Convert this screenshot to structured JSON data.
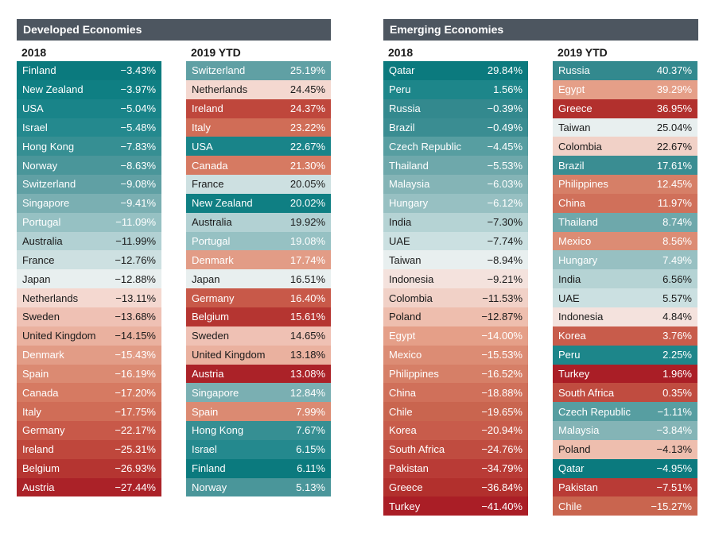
{
  "chart_data": [
    {
      "type": "table",
      "title": "Developed Economies",
      "tables": [
        {
          "label": "2018",
          "rows": [
            {
              "name": "Finland",
              "value": "−3.43%",
              "num": -3.43
            },
            {
              "name": "New Zealand",
              "value": "−3.97%",
              "num": -3.97
            },
            {
              "name": "USA",
              "value": "−5.04%",
              "num": -5.04
            },
            {
              "name": "Israel",
              "value": "−5.48%",
              "num": -5.48
            },
            {
              "name": "Hong Kong",
              "value": "−7.83%",
              "num": -7.83
            },
            {
              "name": "Norway",
              "value": "−8.63%",
              "num": -8.63
            },
            {
              "name": "Switzerland",
              "value": "−9.08%",
              "num": -9.08
            },
            {
              "name": "Singapore",
              "value": "−9.41%",
              "num": -9.41
            },
            {
              "name": "Portugal",
              "value": "−11.09%",
              "num": -11.09
            },
            {
              "name": "Australia",
              "value": "−11.99%",
              "num": -11.99
            },
            {
              "name": "France",
              "value": "−12.76%",
              "num": -12.76
            },
            {
              "name": "Japan",
              "value": "−12.88%",
              "num": -12.88
            },
            {
              "name": "Netherlands",
              "value": "−13.11%",
              "num": -13.11
            },
            {
              "name": "Sweden",
              "value": "−13.68%",
              "num": -13.68
            },
            {
              "name": "United Kingdom",
              "value": "−14.15%",
              "num": -14.15
            },
            {
              "name": "Denmark",
              "value": "−15.43%",
              "num": -15.43
            },
            {
              "name": "Spain",
              "value": "−16.19%",
              "num": -16.19
            },
            {
              "name": "Canada",
              "value": "−17.20%",
              "num": -17.2
            },
            {
              "name": "Italy",
              "value": "−17.75%",
              "num": -17.75
            },
            {
              "name": "Germany",
              "value": "−22.17%",
              "num": -22.17
            },
            {
              "name": "Ireland",
              "value": "−25.31%",
              "num": -25.31
            },
            {
              "name": "Belgium",
              "value": "−26.93%",
              "num": -26.93
            },
            {
              "name": "Austria",
              "value": "−27.44%",
              "num": -27.44
            }
          ]
        },
        {
          "label": "2019 YTD",
          "rows": [
            {
              "name": "Switzerland",
              "value": "25.19%",
              "num": 25.19
            },
            {
              "name": "Netherlands",
              "value": "24.45%",
              "num": 24.45
            },
            {
              "name": "Ireland",
              "value": "24.37%",
              "num": 24.37
            },
            {
              "name": "Italy",
              "value": "23.22%",
              "num": 23.22
            },
            {
              "name": "USA",
              "value": "22.67%",
              "num": 22.67
            },
            {
              "name": "Canada",
              "value": "21.30%",
              "num": 21.3
            },
            {
              "name": "France",
              "value": "20.05%",
              "num": 20.05
            },
            {
              "name": "New Zealand",
              "value": "20.02%",
              "num": 20.02
            },
            {
              "name": "Australia",
              "value": "19.92%",
              "num": 19.92
            },
            {
              "name": "Portugal",
              "value": "19.08%",
              "num": 19.08
            },
            {
              "name": "Denmark",
              "value": "17.74%",
              "num": 17.74
            },
            {
              "name": "Japan",
              "value": "16.51%",
              "num": 16.51
            },
            {
              "name": "Germany",
              "value": "16.40%",
              "num": 16.4
            },
            {
              "name": "Belgium",
              "value": "15.61%",
              "num": 15.61
            },
            {
              "name": "Sweden",
              "value": "14.65%",
              "num": 14.65
            },
            {
              "name": "United Kingdom",
              "value": "13.18%",
              "num": 13.18
            },
            {
              "name": "Austria",
              "value": "13.08%",
              "num": 13.08
            },
            {
              "name": "Singapore",
              "value": "12.84%",
              "num": 12.84
            },
            {
              "name": "Spain",
              "value": "7.99%",
              "num": 7.99
            },
            {
              "name": "Hong Kong",
              "value": "7.67%",
              "num": 7.67
            },
            {
              "name": "Israel",
              "value": "6.15%",
              "num": 6.15
            },
            {
              "name": "Finland",
              "value": "6.11%",
              "num": 6.11
            },
            {
              "name": "Norway",
              "value": "5.13%",
              "num": 5.13
            }
          ]
        }
      ]
    },
    {
      "type": "table",
      "title": "Emerging Economies",
      "tables": [
        {
          "label": "2018",
          "rows": [
            {
              "name": "Qatar",
              "value": "29.84%",
              "num": 29.84
            },
            {
              "name": "Peru",
              "value": "1.56%",
              "num": 1.56
            },
            {
              "name": "Russia",
              "value": "−0.39%",
              "num": -0.39
            },
            {
              "name": "Brazil",
              "value": "−0.49%",
              "num": -0.49
            },
            {
              "name": "Czech Republic",
              "value": "−4.45%",
              "num": -4.45
            },
            {
              "name": "Thailand",
              "value": "−5.53%",
              "num": -5.53
            },
            {
              "name": "Malaysia",
              "value": "−6.03%",
              "num": -6.03
            },
            {
              "name": "Hungary",
              "value": "−6.12%",
              "num": -6.12
            },
            {
              "name": "India",
              "value": "−7.30%",
              "num": -7.3
            },
            {
              "name": "UAE",
              "value": "−7.74%",
              "num": -7.74
            },
            {
              "name": "Taiwan",
              "value": "−8.94%",
              "num": -8.94
            },
            {
              "name": "Indonesia",
              "value": "−9.21%",
              "num": -9.21
            },
            {
              "name": "Colombia",
              "value": "−11.53%",
              "num": -11.53
            },
            {
              "name": "Poland",
              "value": "−12.87%",
              "num": -12.87
            },
            {
              "name": "Egypt",
              "value": "−14.00%",
              "num": -14.0
            },
            {
              "name": "Mexico",
              "value": "−15.53%",
              "num": -15.53
            },
            {
              "name": "Philippines",
              "value": "−16.52%",
              "num": -16.52
            },
            {
              "name": "China",
              "value": "−18.88%",
              "num": -18.88
            },
            {
              "name": "Chile",
              "value": "−19.65%",
              "num": -19.65
            },
            {
              "name": "Korea",
              "value": "−20.94%",
              "num": -20.94
            },
            {
              "name": "South Africa",
              "value": "−24.76%",
              "num": -24.76
            },
            {
              "name": "Pakistan",
              "value": "−34.79%",
              "num": -34.79
            },
            {
              "name": "Greece",
              "value": "−36.84%",
              "num": -36.84
            },
            {
              "name": "Turkey",
              "value": "−41.40%",
              "num": -41.4
            }
          ]
        },
        {
          "label": "2019 YTD",
          "rows": [
            {
              "name": "Russia",
              "value": "40.37%",
              "num": 40.37
            },
            {
              "name": "Egypt",
              "value": "39.29%",
              "num": 39.29
            },
            {
              "name": "Greece",
              "value": "36.95%",
              "num": 36.95
            },
            {
              "name": "Taiwan",
              "value": "25.04%",
              "num": 25.04
            },
            {
              "name": "Colombia",
              "value": "22.67%",
              "num": 22.67
            },
            {
              "name": "Brazil",
              "value": "17.61%",
              "num": 17.61
            },
            {
              "name": "Philippines",
              "value": "12.45%",
              "num": 12.45
            },
            {
              "name": "China",
              "value": "11.97%",
              "num": 11.97
            },
            {
              "name": "Thailand",
              "value": "8.74%",
              "num": 8.74
            },
            {
              "name": "Mexico",
              "value": "8.56%",
              "num": 8.56
            },
            {
              "name": "Hungary",
              "value": "7.49%",
              "num": 7.49
            },
            {
              "name": "India",
              "value": "6.56%",
              "num": 6.56
            },
            {
              "name": "UAE",
              "value": "5.57%",
              "num": 5.57
            },
            {
              "name": "Indonesia",
              "value": "4.84%",
              "num": 4.84
            },
            {
              "name": "Korea",
              "value": "3.76%",
              "num": 3.76
            },
            {
              "name": "Peru",
              "value": "2.25%",
              "num": 2.25
            },
            {
              "name": "Turkey",
              "value": "1.96%",
              "num": 1.96
            },
            {
              "name": "South Africa",
              "value": "0.35%",
              "num": 0.35
            },
            {
              "name": "Czech Republic",
              "value": "−1.11%",
              "num": -1.11
            },
            {
              "name": "Malaysia",
              "value": "−3.84%",
              "num": -3.84
            },
            {
              "name": "Poland",
              "value": "−4.13%",
              "num": -4.13
            },
            {
              "name": "Qatar",
              "value": "−4.95%",
              "num": -4.95
            },
            {
              "name": "Pakistan",
              "value": "−7.51%",
              "num": -7.51
            },
            {
              "name": "Chile",
              "value": "−15.27%",
              "num": -15.27
            }
          ]
        }
      ]
    }
  ],
  "colors": {
    "banner": "#4d5660",
    "country_colors": {
      "Finland": "#0b7a7e",
      "New Zealand": "#0f7f83",
      "USA": "#198489",
      "Israel": "#24898e",
      "Hong Kong": "#368f93",
      "Norway": "#4a969a",
      "Switzerland": "#60a0a4",
      "Singapore": "#7aafb2",
      "Portugal": "#96c1c3",
      "Australia": "#b2d1d3",
      "France": "#cde0e1",
      "Japan": "#e8efef",
      "Netherlands": "#f4d8d0",
      "Sweden": "#efc1b4",
      "United Kingdom": "#eab19f",
      "Denmark": "#e29c86",
      "Spain": "#db8a72",
      "Canada": "#d67a62",
      "Italy": "#d06d57",
      "Germany": "#c85949",
      "Ireland": "#bf473c",
      "Belgium": "#b53531",
      "Austria": "#ab2228",
      "Qatar": "#0b7a7e",
      "Peru": "#1d868a",
      "Russia": "#33898e",
      "Brazil": "#3a8d92",
      "Czech Republic": "#579ea1",
      "Thailand": "#6ea8ab",
      "Malaysia": "#84b4b6",
      "Hungary": "#97c0c2",
      "India": "#b5d3d4",
      "UAE": "#cbe0e1",
      "Taiwan": "#e8efef",
      "Indonesia": "#f4e2dd",
      "Colombia": "#f1d1c7",
      "Poland": "#eebeae",
      "Egypt": "#e59f88",
      "Mexico": "#dc8c74",
      "Philippines": "#d67f67",
      "China": "#d0705a",
      "Chile": "#c9654f",
      "Korea": "#c85c4b",
      "South Africa": "#c04c40",
      "Pakistan": "#b93b36",
      "Greece": "#b2302d",
      "Turkey": "#aa1e26"
    }
  },
  "panels": {
    "developed": {
      "title": "Developed Economies",
      "col1": "2018",
      "col2": "2019 YTD"
    },
    "emerging": {
      "title": "Emerging Economies",
      "col1": "2018",
      "col2": "2019 YTD"
    }
  }
}
